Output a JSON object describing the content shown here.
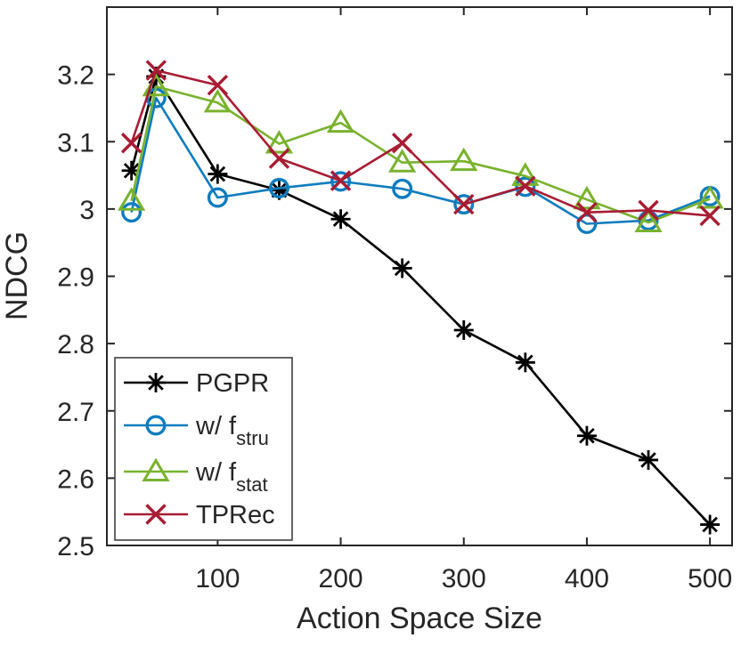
{
  "figure": {
    "background": "#ffffff",
    "box_color": "#262626",
    "text_color": "#262626",
    "legend_border_color": "#404040"
  },
  "chart_data": {
    "type": "line",
    "title": "",
    "xlabel": "Action Space Size",
    "ylabel": "NDCG",
    "xlim": [
      10,
      518
    ],
    "ylim": [
      2.5,
      3.3
    ],
    "xticks": [
      100,
      200,
      300,
      400,
      500
    ],
    "xtick_labels": [
      "100",
      "200",
      "300",
      "400",
      "500"
    ],
    "yticks": [
      2.5,
      2.6,
      2.7,
      2.8,
      2.9,
      3.0,
      3.1,
      3.2
    ],
    "ytick_labels": [
      "2.5",
      "2.6",
      "2.7",
      "2.8",
      "2.9",
      "3",
      "3.1",
      "3.2"
    ],
    "grid": false,
    "legend_position": "bottom-left",
    "x": [
      30,
      50,
      100,
      150,
      200,
      250,
      300,
      350,
      400,
      450,
      500
    ],
    "series": [
      {
        "name": "PGPR",
        "legend_main": "PGPR",
        "legend_sub": "",
        "color": "#000000",
        "marker": "asterisk",
        "values": [
          3.057,
          3.197,
          3.052,
          3.028,
          2.985,
          2.912,
          2.82,
          2.772,
          2.663,
          2.627,
          2.531
        ]
      },
      {
        "name": "w/ f_stru",
        "legend_main": "w/ f",
        "legend_sub": "stru",
        "color": "#0F7CBE",
        "marker": "circle",
        "values": [
          2.995,
          3.165,
          3.017,
          3.031,
          3.041,
          3.03,
          3.007,
          3.033,
          2.978,
          2.983,
          3.019
        ]
      },
      {
        "name": "w/ f_stat",
        "legend_main": "w/ f",
        "legend_sub": "stat",
        "color": "#79B22E",
        "marker": "triangle",
        "values": [
          3.012,
          3.182,
          3.158,
          3.097,
          3.128,
          3.069,
          3.071,
          3.049,
          3.014,
          2.98,
          3.015
        ]
      },
      {
        "name": "TPRec",
        "legend_main": "TPRec",
        "legend_sub": "",
        "color": "#A81C33",
        "marker": "x",
        "values": [
          3.098,
          3.206,
          3.184,
          3.075,
          3.042,
          3.098,
          3.007,
          3.034,
          2.995,
          2.998,
          2.99
        ]
      }
    ]
  }
}
